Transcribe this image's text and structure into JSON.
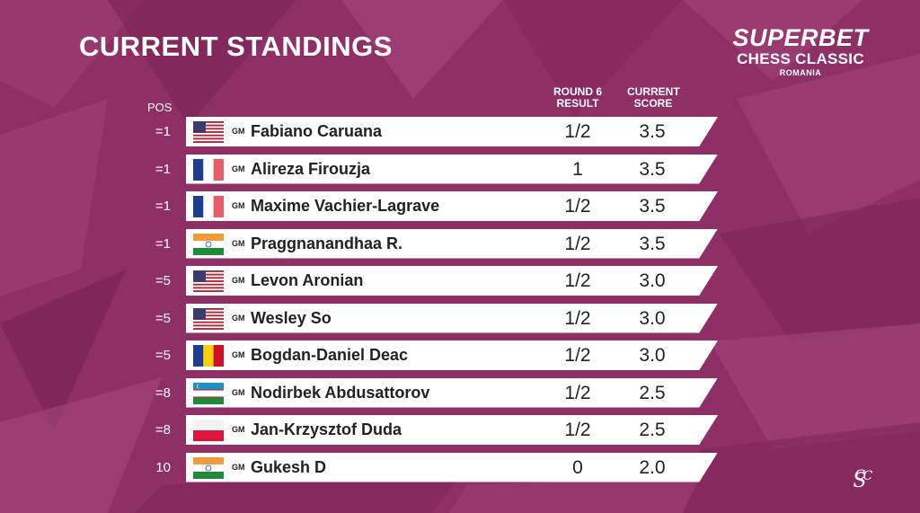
{
  "title": "CURRENT STANDINGS",
  "logo": {
    "line1": "SUPERBET",
    "line2": "CHESS CLASSIC",
    "line3": "ROMANIA"
  },
  "columns": {
    "pos": "POS",
    "result_l1": "ROUND 6",
    "result_l2": "RESULT",
    "score_l1": "CURRENT",
    "score_l2": "SCORE"
  },
  "colors": {
    "background": "#8e2f66",
    "row": "#ffffff",
    "text": "#222222"
  },
  "rows": [
    {
      "pos": "=1",
      "title": "GM",
      "name": "Fabiano Caruana",
      "result": "1/2",
      "score": "3.5",
      "flag": "usa"
    },
    {
      "pos": "=1",
      "title": "GM",
      "name": "Alireza Firouzja",
      "result": "1",
      "score": "3.5",
      "flag": "france"
    },
    {
      "pos": "=1",
      "title": "GM",
      "name": "Maxime Vachier-Lagrave",
      "result": "1/2",
      "score": "3.5",
      "flag": "france"
    },
    {
      "pos": "=1",
      "title": "GM",
      "name": "Praggnanandhaa R.",
      "result": "1/2",
      "score": "3.5",
      "flag": "india"
    },
    {
      "pos": "=5",
      "title": "GM",
      "name": "Levon Aronian",
      "result": "1/2",
      "score": "3.0",
      "flag": "usa"
    },
    {
      "pos": "=5",
      "title": "GM",
      "name": "Wesley So",
      "result": "1/2",
      "score": "3.0",
      "flag": "usa"
    },
    {
      "pos": "=5",
      "title": "GM",
      "name": "Bogdan-Daniel Deac",
      "result": "1/2",
      "score": "3.0",
      "flag": "romania"
    },
    {
      "pos": "=8",
      "title": "GM",
      "name": "Nodirbek Abdusattorov",
      "result": "1/2",
      "score": "2.5",
      "flag": "uzbekistan"
    },
    {
      "pos": "=8",
      "title": "GM",
      "name": "Jan-Krzysztof Duda",
      "result": "1/2",
      "score": "2.5",
      "flag": "poland"
    },
    {
      "pos": "10",
      "title": "GM",
      "name": "Gukesh D",
      "result": "0",
      "score": "2.0",
      "flag": "india"
    }
  ]
}
